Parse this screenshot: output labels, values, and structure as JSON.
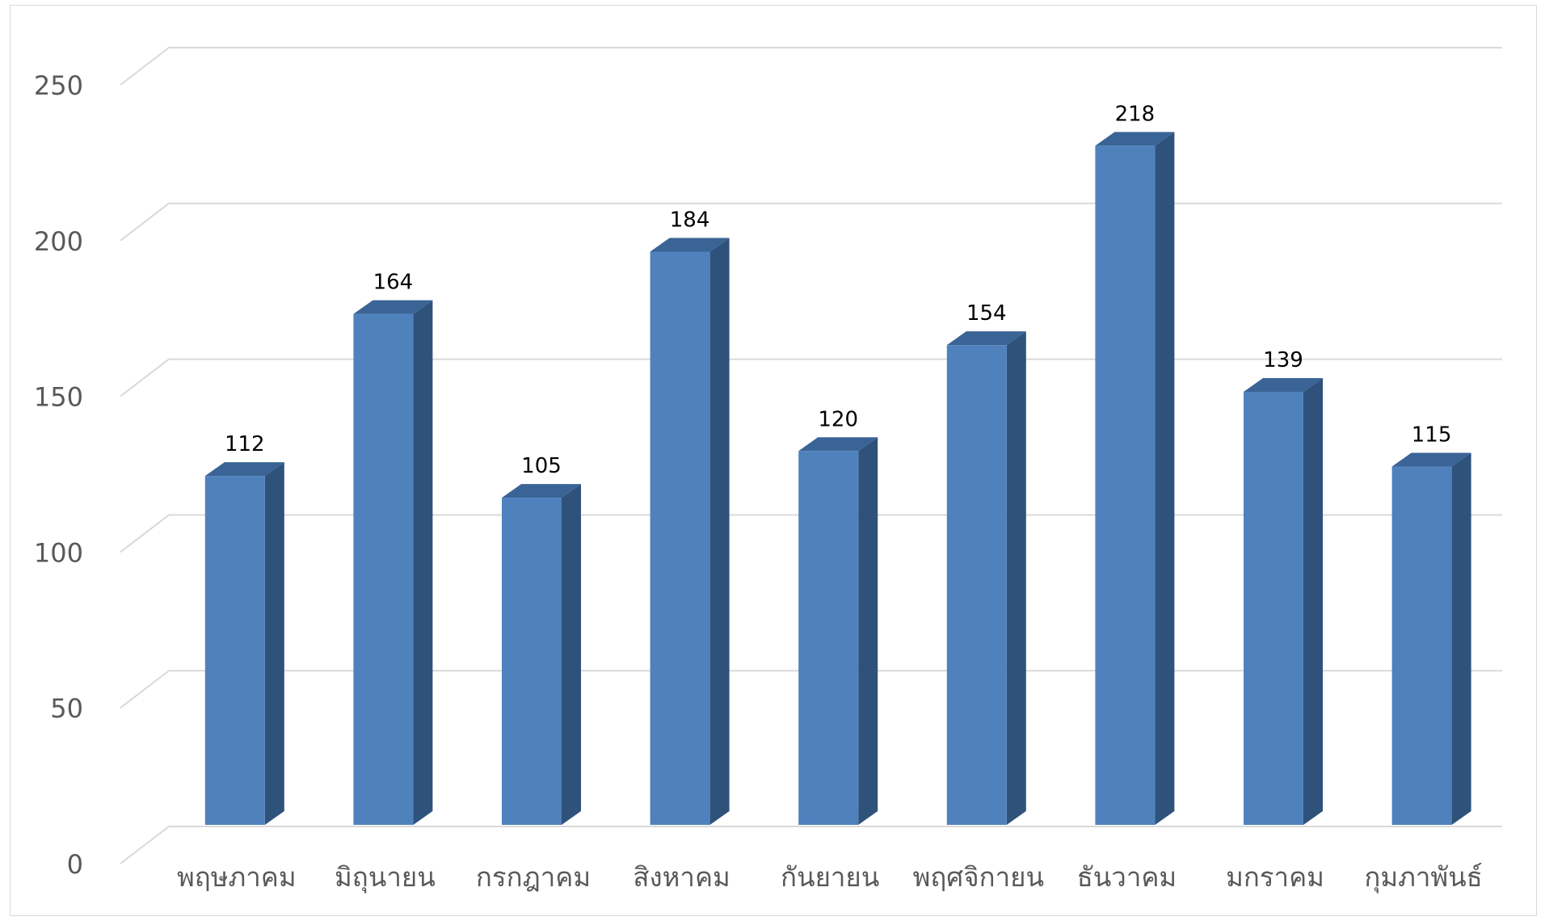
{
  "chart_data": {
    "type": "bar",
    "style": "3d-column",
    "categories": [
      "พฤษภาคม",
      "มิถุนายน",
      "กรกฎาคม",
      "สิงหาคม",
      "กันยายน",
      "พฤศจิกายน",
      "ธันวาคม",
      "มกราคม",
      "กุมภาพันธ์"
    ],
    "series": [
      {
        "values": [
          112,
          164,
          105,
          184,
          120,
          154,
          218,
          139,
          115
        ],
        "color": "#4F81BD",
        "side_color": "#2F527B",
        "top_color": "#3A6496"
      }
    ],
    "data_labels": [
      "112",
      "164",
      "105",
      "184",
      "120",
      "154",
      "218",
      "139",
      "115"
    ],
    "yticks": [
      "0",
      "50",
      "100",
      "150",
      "200",
      "250"
    ],
    "ylim": [
      0,
      250
    ],
    "grid": true,
    "gridline_color": "#d9d9d9",
    "legend": "none",
    "title": "",
    "xlabel": "",
    "ylabel": ""
  }
}
